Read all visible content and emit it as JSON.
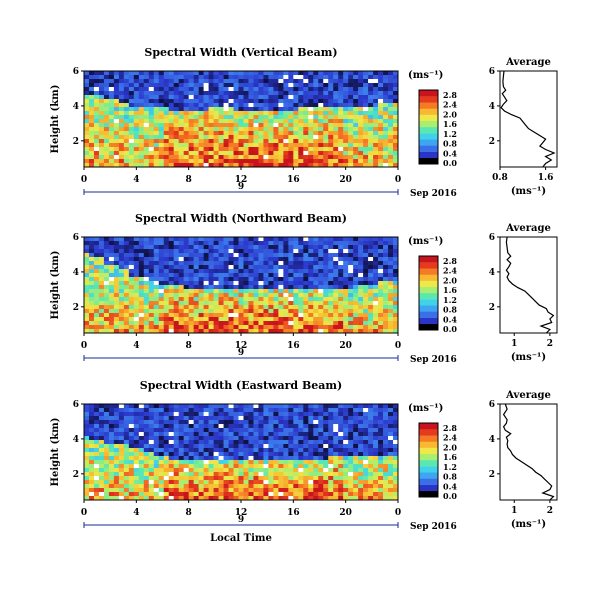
{
  "chart_data": [
    {
      "type": "heatmap",
      "title": "Spectral Width (Vertical Beam)",
      "ylabel": "Height (km)",
      "xlabel": "",
      "date_label": "9",
      "month_label": "Sep 2016",
      "x_ticks": [
        "0",
        "4",
        "8",
        "12",
        "16",
        "20",
        "0"
      ],
      "y_ticks": [
        "2",
        "4",
        "6"
      ],
      "xlim": [
        0,
        24
      ],
      "ylim": [
        0.5,
        6
      ],
      "mixing_height_km": [
        4.7,
        4.6,
        4.4,
        4.2,
        4.0,
        3.9,
        3.85,
        3.8,
        3.8,
        3.8,
        3.85,
        3.85,
        3.8,
        3.8,
        3.8,
        3.8,
        3.8,
        3.85,
        3.85,
        3.9,
        3.95,
        4.0,
        4.05,
        4.1,
        4.1
      ],
      "colorbar": {
        "unit": "(ms⁻¹)",
        "labels": [
          "0.0",
          "0.4",
          "0.8",
          "1.2",
          "1.6",
          "2.0",
          "2.4",
          "2.8"
        ],
        "colors": [
          "#000000",
          "#2a35c8",
          "#3a6fe8",
          "#3ea5f2",
          "#40d2e8",
          "#5ae8b0",
          "#a8ee70",
          "#eee84a",
          "#f8b830",
          "#f57a26",
          "#e43a1e",
          "#c8141c"
        ]
      },
      "average": {
        "title": "Average",
        "xlabel": "(ms⁻¹)",
        "x_ticks": [
          "0.8",
          "1.6"
        ],
        "xlim": [
          0.8,
          1.8
        ],
        "y_ticks": [
          "2",
          "4",
          "6"
        ],
        "ylim": [
          0.5,
          6
        ],
        "points": [
          [
            1.55,
            0.5
          ],
          [
            1.6,
            0.7
          ],
          [
            1.7,
            0.9
          ],
          [
            1.6,
            1.1
          ],
          [
            1.75,
            1.3
          ],
          [
            1.6,
            1.5
          ],
          [
            1.5,
            1.7
          ],
          [
            1.55,
            1.9
          ],
          [
            1.6,
            2.1
          ],
          [
            1.5,
            2.3
          ],
          [
            1.4,
            2.5
          ],
          [
            1.3,
            2.7
          ],
          [
            1.25,
            2.9
          ],
          [
            1.2,
            3.1
          ],
          [
            1.15,
            3.3
          ],
          [
            1.0,
            3.5
          ],
          [
            0.88,
            3.7
          ],
          [
            0.82,
            3.9
          ],
          [
            0.86,
            4.1
          ],
          [
            0.92,
            4.3
          ],
          [
            0.88,
            4.5
          ],
          [
            0.84,
            4.7
          ],
          [
            0.9,
            4.9
          ],
          [
            0.86,
            5.1
          ],
          [
            0.85,
            5.4
          ],
          [
            0.86,
            5.7
          ],
          [
            0.87,
            6.0
          ]
        ]
      }
    },
    {
      "type": "heatmap",
      "title": "Spectral Width (Northward Beam)",
      "ylabel": "Height (km)",
      "xlabel": "",
      "date_label": "9",
      "month_label": "Sep 2016",
      "x_ticks": [
        "0",
        "4",
        "8",
        "12",
        "16",
        "20",
        "0"
      ],
      "y_ticks": [
        "2",
        "4",
        "6"
      ],
      "xlim": [
        0,
        24
      ],
      "ylim": [
        0.5,
        6
      ],
      "mixing_height_km": [
        5.0,
        4.8,
        4.5,
        4.1,
        3.8,
        3.5,
        3.3,
        3.2,
        3.1,
        3.05,
        3.0,
        3.0,
        3.0,
        3.0,
        3.0,
        3.0,
        3.0,
        3.0,
        3.0,
        3.05,
        3.1,
        3.2,
        3.3,
        3.4,
        3.5
      ],
      "colorbar": {
        "unit": "(ms⁻¹)",
        "labels": [
          "0.0",
          "0.4",
          "0.8",
          "1.2",
          "1.6",
          "2.0",
          "2.4",
          "2.8"
        ],
        "colors": [
          "#000000",
          "#2a35c8",
          "#3a6fe8",
          "#3ea5f2",
          "#40d2e8",
          "#5ae8b0",
          "#a8ee70",
          "#eee84a",
          "#f8b830",
          "#f57a26",
          "#e43a1e",
          "#c8141c"
        ]
      },
      "average": {
        "title": "Average",
        "xlabel": "(ms⁻¹)",
        "x_ticks": [
          "1",
          "2"
        ],
        "xlim": [
          0.6,
          2.2
        ],
        "y_ticks": [
          "2",
          "4",
          "6"
        ],
        "ylim": [
          0.5,
          6
        ],
        "points": [
          [
            1.9,
            0.5
          ],
          [
            2.0,
            0.7
          ],
          [
            1.75,
            0.9
          ],
          [
            2.05,
            1.1
          ],
          [
            2.0,
            1.3
          ],
          [
            2.1,
            1.5
          ],
          [
            1.95,
            1.7
          ],
          [
            1.9,
            1.9
          ],
          [
            1.7,
            2.1
          ],
          [
            1.6,
            2.3
          ],
          [
            1.5,
            2.5
          ],
          [
            1.4,
            2.7
          ],
          [
            1.3,
            2.9
          ],
          [
            1.1,
            3.1
          ],
          [
            0.95,
            3.3
          ],
          [
            0.85,
            3.5
          ],
          [
            0.8,
            3.7
          ],
          [
            0.85,
            3.9
          ],
          [
            0.78,
            4.1
          ],
          [
            0.85,
            4.3
          ],
          [
            0.9,
            4.5
          ],
          [
            0.8,
            4.7
          ],
          [
            0.9,
            4.9
          ],
          [
            0.82,
            5.1
          ],
          [
            0.8,
            5.4
          ],
          [
            0.78,
            5.7
          ],
          [
            0.8,
            6.0
          ]
        ]
      }
    },
    {
      "type": "heatmap",
      "title": "Spectral Width (Eastward Beam)",
      "ylabel": "Height (km)",
      "xlabel": "Local Time",
      "date_label": "9",
      "month_label": "Sep 2016",
      "x_ticks": [
        "0",
        "4",
        "8",
        "12",
        "16",
        "20",
        "0"
      ],
      "y_ticks": [
        "2",
        "4",
        "6"
      ],
      "xlim": [
        0,
        24
      ],
      "ylim": [
        0.5,
        6
      ],
      "mixing_height_km": [
        4.2,
        4.0,
        3.8,
        3.6,
        3.4,
        3.2,
        3.0,
        2.9,
        2.85,
        2.8,
        2.8,
        2.8,
        2.8,
        2.8,
        2.8,
        2.8,
        2.85,
        2.85,
        2.9,
        2.95,
        3.0,
        3.0,
        3.05,
        3.1,
        3.1
      ],
      "colorbar": {
        "unit": "(ms⁻¹)",
        "labels": [
          "0.0",
          "0.4",
          "0.8",
          "1.2",
          "1.6",
          "2.0",
          "2.4",
          "2.8"
        ],
        "colors": [
          "#000000",
          "#2a35c8",
          "#3a6fe8",
          "#3ea5f2",
          "#40d2e8",
          "#5ae8b0",
          "#a8ee70",
          "#eee84a",
          "#f8b830",
          "#f57a26",
          "#e43a1e",
          "#c8141c"
        ]
      },
      "average": {
        "title": "Average",
        "xlabel": "(ms⁻¹)",
        "x_ticks": [
          "1",
          "2"
        ],
        "xlim": [
          0.6,
          2.2
        ],
        "y_ticks": [
          "2",
          "4",
          "6"
        ],
        "ylim": [
          0.5,
          6
        ],
        "points": [
          [
            2.0,
            0.5
          ],
          [
            2.1,
            0.7
          ],
          [
            1.8,
            0.9
          ],
          [
            2.0,
            1.1
          ],
          [
            2.05,
            1.3
          ],
          [
            1.95,
            1.5
          ],
          [
            1.85,
            1.7
          ],
          [
            1.75,
            1.9
          ],
          [
            1.6,
            2.1
          ],
          [
            1.5,
            2.3
          ],
          [
            1.35,
            2.5
          ],
          [
            1.2,
            2.7
          ],
          [
            1.05,
            2.9
          ],
          [
            0.95,
            3.1
          ],
          [
            0.9,
            3.3
          ],
          [
            0.82,
            3.5
          ],
          [
            0.8,
            3.7
          ],
          [
            0.82,
            3.9
          ],
          [
            0.78,
            4.1
          ],
          [
            0.9,
            4.3
          ],
          [
            0.75,
            4.5
          ],
          [
            0.7,
            4.7
          ],
          [
            0.78,
            4.9
          ],
          [
            0.8,
            5.1
          ],
          [
            0.7,
            5.4
          ],
          [
            0.8,
            5.7
          ],
          [
            0.75,
            6.0
          ]
        ]
      }
    }
  ]
}
